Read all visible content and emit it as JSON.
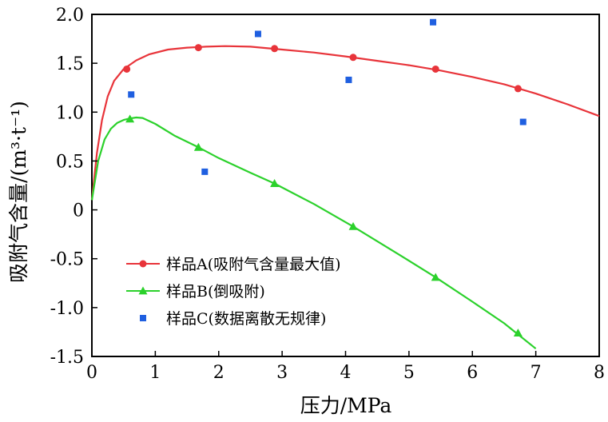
{
  "chart_data": {
    "type": "scatter",
    "title": "",
    "xlabel": "压力/MPa",
    "ylabel": "吸附气含量/(m³·t⁻¹)",
    "xlim": [
      0,
      8
    ],
    "ylim": [
      -1.5,
      2.0
    ],
    "x_ticks": [
      0,
      1,
      2,
      3,
      4,
      5,
      6,
      7,
      8
    ],
    "x_tick_labels": [
      "0",
      "1",
      "2",
      "3",
      "4",
      "5",
      "6",
      "7",
      "8"
    ],
    "y_ticks": [
      -1.5,
      -1.0,
      -0.5,
      0,
      0.5,
      1.0,
      1.5,
      2.0
    ],
    "y_tick_labels": [
      "-1.5",
      "-1.0",
      "-0.5",
      "0",
      "0.5",
      "1.0",
      "1.5",
      "2.0"
    ],
    "grid": false,
    "legend_position": "bottom-left",
    "series": [
      {
        "name": "样品A(吸附气含量最大值)",
        "color": "#e8343a",
        "line_color": "#e8343a",
        "marker": "circle",
        "points": [
          [
            0.55,
            1.44
          ],
          [
            1.68,
            1.66
          ],
          [
            2.88,
            1.65
          ],
          [
            4.12,
            1.56
          ],
          [
            5.42,
            1.44
          ],
          [
            6.72,
            1.24
          ]
        ],
        "curve": [
          [
            0.0,
            0.1
          ],
          [
            0.08,
            0.58
          ],
          [
            0.16,
            0.92
          ],
          [
            0.25,
            1.16
          ],
          [
            0.35,
            1.32
          ],
          [
            0.5,
            1.44
          ],
          [
            0.7,
            1.53
          ],
          [
            0.9,
            1.59
          ],
          [
            1.2,
            1.64
          ],
          [
            1.5,
            1.66
          ],
          [
            1.8,
            1.67
          ],
          [
            2.1,
            1.675
          ],
          [
            2.5,
            1.67
          ],
          [
            3.0,
            1.64
          ],
          [
            3.5,
            1.61
          ],
          [
            4.0,
            1.57
          ],
          [
            4.5,
            1.525
          ],
          [
            5.0,
            1.48
          ],
          [
            5.5,
            1.425
          ],
          [
            6.0,
            1.36
          ],
          [
            6.5,
            1.285
          ],
          [
            7.0,
            1.19
          ],
          [
            7.5,
            1.08
          ],
          [
            8.0,
            0.96
          ]
        ]
      },
      {
        "name": "样品B(倒吸附)",
        "color": "#2bd12b",
        "line_color": "#2bd12b",
        "marker": "triangle",
        "points": [
          [
            0.6,
            0.93
          ],
          [
            1.68,
            0.64
          ],
          [
            2.88,
            0.27
          ],
          [
            4.12,
            -0.17
          ],
          [
            5.42,
            -0.69
          ],
          [
            6.72,
            -1.26
          ]
        ],
        "curve": [
          [
            0.0,
            0.1
          ],
          [
            0.1,
            0.5
          ],
          [
            0.2,
            0.72
          ],
          [
            0.3,
            0.83
          ],
          [
            0.4,
            0.89
          ],
          [
            0.5,
            0.92
          ],
          [
            0.6,
            0.935
          ],
          [
            0.7,
            0.945
          ],
          [
            0.8,
            0.94
          ],
          [
            1.0,
            0.88
          ],
          [
            1.3,
            0.76
          ],
          [
            1.68,
            0.64
          ],
          [
            2.0,
            0.53
          ],
          [
            2.5,
            0.38
          ],
          [
            2.88,
            0.27
          ],
          [
            3.5,
            0.06
          ],
          [
            4.12,
            -0.17
          ],
          [
            4.8,
            -0.44
          ],
          [
            5.42,
            -0.69
          ],
          [
            6.0,
            -0.94
          ],
          [
            6.5,
            -1.16
          ],
          [
            7.0,
            -1.42
          ]
        ]
      },
      {
        "name": "样品C(数据离散无规律)",
        "color": "#1f5fe0",
        "line_color": null,
        "marker": "square",
        "points": [
          [
            0.62,
            1.18
          ],
          [
            1.78,
            0.39
          ],
          [
            2.62,
            1.8
          ],
          [
            4.05,
            1.33
          ],
          [
            5.38,
            1.92
          ],
          [
            6.8,
            0.9
          ]
        ],
        "curve": null
      }
    ]
  }
}
